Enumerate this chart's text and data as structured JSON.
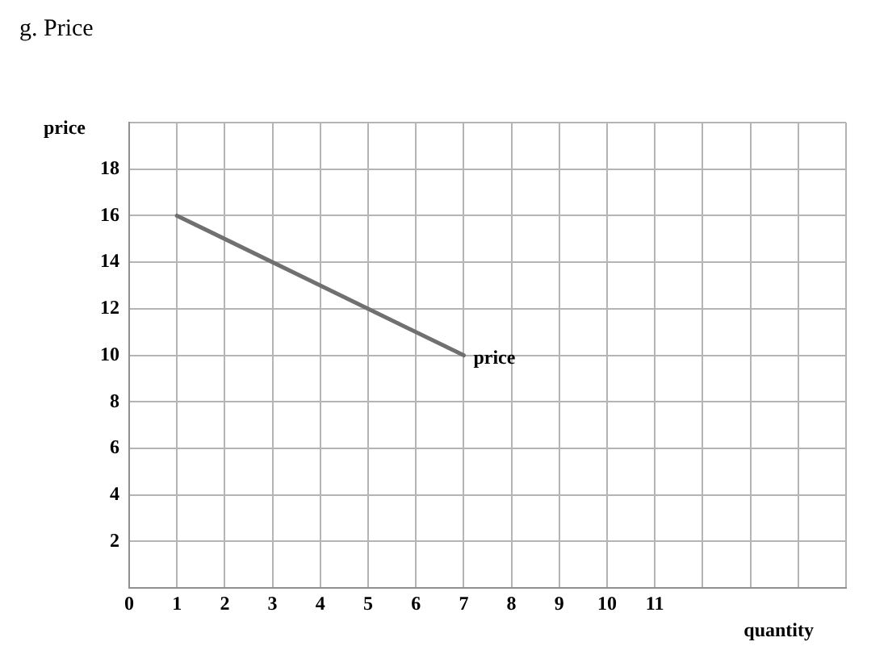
{
  "chart_data": {
    "type": "line",
    "title": "g. Price",
    "xlabel": "quantity",
    "ylabel": "price",
    "xlim": [
      0,
      15
    ],
    "xticks": [
      0,
      1,
      2,
      3,
      4,
      5,
      6,
      7,
      8,
      9,
      10,
      11,
      {
        "value": 12,
        "label": null
      },
      {
        "value": 13,
        "label": null
      },
      {
        "value": 14,
        "label": null
      },
      {
        "value": 15,
        "label": null
      }
    ],
    "ylim": [
      0,
      20
    ],
    "yticks": [
      {
        "value": 0,
        "label": null
      },
      2,
      4,
      6,
      8,
      10,
      12,
      14,
      16,
      18,
      {
        "value": 20,
        "label": null
      }
    ],
    "grid": true,
    "legend": false,
    "marker": "none",
    "line_style": "solid",
    "series": [
      {
        "name": "price",
        "color": "#707070",
        "x": [
          1,
          7
        ],
        "values": [
          16,
          10
        ]
      }
    ]
  }
}
